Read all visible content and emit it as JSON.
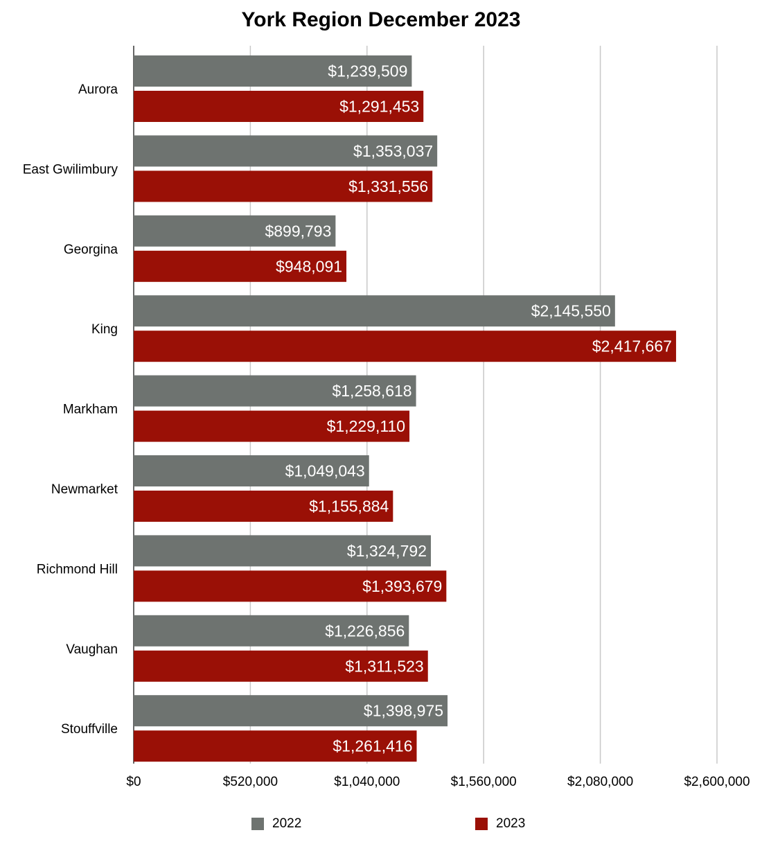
{
  "chart_data": {
    "type": "bar",
    "orientation": "horizontal",
    "title": "York Region December 2023",
    "categories": [
      "Aurora",
      "East Gwilimbury",
      "Georgina",
      "King",
      "Markham",
      "Newmarket",
      "Richmond Hill",
      "Vaughan",
      "Stouffville"
    ],
    "series": [
      {
        "name": "2022",
        "color": "#6e7370",
        "values": [
          1239509,
          1353037,
          899793,
          2145550,
          1258618,
          1049043,
          1324792,
          1226856,
          1398975
        ],
        "labels": [
          "$1,239,509",
          "$1,353,037",
          "$899,793",
          "$2,145,550",
          "$1,258,618",
          "$1,049,043",
          "$1,324,792",
          "$1,226,856",
          "$1,398,975"
        ]
      },
      {
        "name": "2023",
        "color": "#9a1006",
        "values": [
          1291453,
          1331556,
          948091,
          2417667,
          1229110,
          1155884,
          1393679,
          1311523,
          1261416
        ],
        "labels": [
          "$1,291,453",
          "$1,331,556",
          "$948,091",
          "$2,417,667",
          "$1,229,110",
          "$1,155,884",
          "$1,393,679",
          "$1,311,523",
          "$1,261,416"
        ]
      }
    ],
    "xlim": [
      0,
      2600000
    ],
    "xticks": [
      0,
      520000,
      1040000,
      1560000,
      2080000,
      2600000
    ],
    "xtick_labels": [
      "$0",
      "$520,000",
      "$1,040,000",
      "$1,560,000",
      "$2,080,000",
      "$2,600,000"
    ],
    "grid": true,
    "legend_position": "bottom"
  }
}
